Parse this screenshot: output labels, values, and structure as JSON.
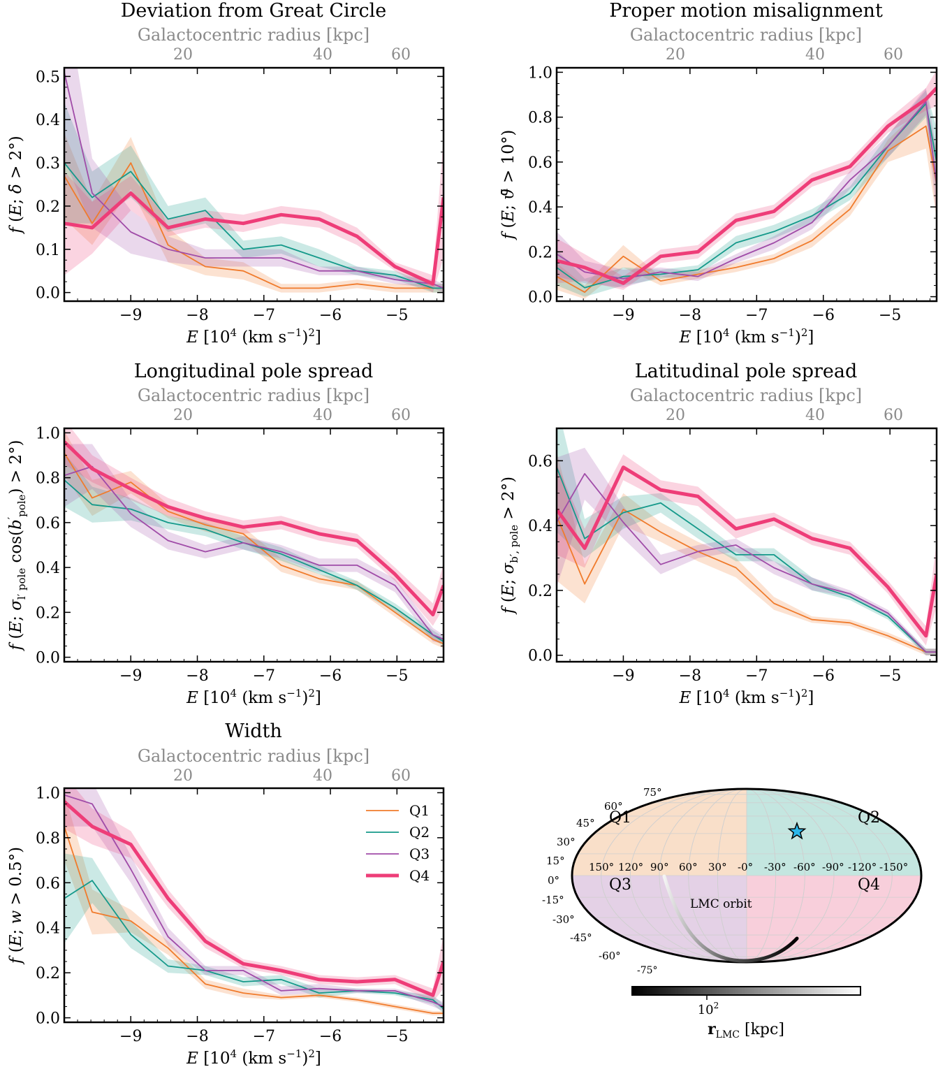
{
  "colors": {
    "Q1": "#f07b2c",
    "Q2": "#14998a",
    "Q3": "#a04ca8",
    "Q4": "#ee3d78"
  },
  "legend": [
    "Q1",
    "Q2",
    "Q3",
    "Q4"
  ],
  "chart_data": [
    {
      "type": "line",
      "title": "Deviation from Great Circle",
      "toplabel": "Galactocentric radius [kpc]",
      "top_ticks": [
        "20",
        "40",
        "60"
      ],
      "xlabel": "E [10^4 (km s^-1)^2]",
      "ylabel": "f (E; δ̄ > 2°)",
      "xlim": [
        -10.0,
        -4.3
      ],
      "ylim": [
        -0.02,
        0.52
      ],
      "xticks": [
        -9,
        -8,
        -7,
        -6,
        -5
      ],
      "yticks": [
        0.0,
        0.1,
        0.2,
        0.3,
        0.4,
        0.5
      ],
      "ytick_labels": [
        "0.0",
        "0.1",
        "0.2",
        "0.3",
        "0.4",
        "0.5"
      ],
      "x": [
        -10.0,
        -9.58,
        -9.0,
        -8.44,
        -7.88,
        -7.31,
        -6.74,
        -6.17,
        -5.6,
        -5.03,
        -4.46,
        -4.3
      ],
      "series": [
        {
          "name": "Q1",
          "values": [
            0.27,
            0.16,
            0.3,
            0.11,
            0.06,
            0.05,
            0.01,
            0.01,
            0.02,
            0.01,
            0.01,
            0.01
          ],
          "band": [
            0.1,
            0.05,
            0.06,
            0.04,
            0.02,
            0.02,
            0.01,
            0.01,
            0.01,
            0.01,
            0.01,
            0.01
          ]
        },
        {
          "name": "Q2",
          "values": [
            0.3,
            0.22,
            0.28,
            0.17,
            0.19,
            0.1,
            0.11,
            0.08,
            0.05,
            0.04,
            0.01,
            0.01
          ],
          "band": [
            0.14,
            0.06,
            0.06,
            0.03,
            0.03,
            0.02,
            0.02,
            0.02,
            0.01,
            0.01,
            0.01,
            0.01
          ]
        },
        {
          "name": "Q3",
          "values": [
            0.51,
            0.23,
            0.14,
            0.1,
            0.08,
            0.08,
            0.08,
            0.05,
            0.05,
            0.03,
            0.02,
            0.01
          ],
          "band": [
            0.2,
            0.08,
            0.05,
            0.03,
            0.02,
            0.02,
            0.02,
            0.01,
            0.01,
            0.01,
            0.01,
            0.01
          ]
        },
        {
          "name": "Q4",
          "values": [
            0.16,
            0.15,
            0.23,
            0.15,
            0.17,
            0.16,
            0.18,
            0.17,
            0.13,
            0.06,
            0.02,
            0.22
          ],
          "band": [
            0.12,
            0.06,
            0.04,
            0.02,
            0.02,
            0.02,
            0.02,
            0.02,
            0.02,
            0.01,
            0.02,
            0.14
          ]
        }
      ]
    },
    {
      "type": "line",
      "title": "Proper motion misalignment",
      "toplabel": "Galactocentric radius [kpc]",
      "top_ticks": [
        "20",
        "40",
        "60"
      ],
      "xlabel": "E [10^4 (km s^-1)^2]",
      "ylabel": "f (E; ϑ̄ > 10°)",
      "xlim": [
        -10.0,
        -4.3
      ],
      "ylim": [
        -0.02,
        1.02
      ],
      "xticks": [
        -9,
        -8,
        -7,
        -6,
        -5
      ],
      "yticks": [
        0.0,
        0.2,
        0.4,
        0.6,
        0.8,
        1.0
      ],
      "ytick_labels": [
        "0.0",
        "0.2",
        "0.4",
        "0.6",
        "0.8",
        "1.0"
      ],
      "x": [
        -10.0,
        -9.58,
        -9.0,
        -8.44,
        -7.88,
        -7.31,
        -6.74,
        -6.17,
        -5.6,
        -5.03,
        -4.46,
        -4.3
      ],
      "series": [
        {
          "name": "Q1",
          "values": [
            0.09,
            0.02,
            0.18,
            0.07,
            0.1,
            0.13,
            0.17,
            0.25,
            0.39,
            0.65,
            0.76,
            0.5
          ],
          "band": [
            0.06,
            0.03,
            0.05,
            0.02,
            0.02,
            0.02,
            0.02,
            0.03,
            0.03,
            0.05,
            0.1,
            0.15
          ]
        },
        {
          "name": "Q2",
          "values": [
            0.13,
            0.04,
            0.09,
            0.1,
            0.12,
            0.24,
            0.29,
            0.36,
            0.46,
            0.67,
            0.86,
            0.6
          ],
          "band": [
            0.08,
            0.04,
            0.04,
            0.02,
            0.02,
            0.03,
            0.03,
            0.03,
            0.03,
            0.05,
            0.06,
            0.15
          ]
        },
        {
          "name": "Q3",
          "values": [
            0.19,
            0.11,
            0.08,
            0.11,
            0.09,
            0.17,
            0.24,
            0.33,
            0.52,
            0.67,
            0.87,
            0.5
          ],
          "band": [
            0.1,
            0.05,
            0.04,
            0.02,
            0.02,
            0.02,
            0.03,
            0.03,
            0.04,
            0.05,
            0.06,
            0.15
          ]
        },
        {
          "name": "Q4",
          "values": [
            0.16,
            0.13,
            0.06,
            0.18,
            0.2,
            0.34,
            0.38,
            0.52,
            0.58,
            0.76,
            0.88,
            0.93
          ],
          "band": [
            0.1,
            0.06,
            0.03,
            0.03,
            0.03,
            0.03,
            0.03,
            0.03,
            0.03,
            0.03,
            0.05,
            0.08
          ]
        }
      ]
    },
    {
      "type": "line",
      "title": "Longitudinal pole spread",
      "toplabel": "Galactocentric radius [kpc]",
      "top_ticks": [
        "20",
        "40",
        "60"
      ],
      "xlabel": "E [10^4 (km s^-1)^2]",
      "ylabel": "f (E; σl′pole cos(b′pole) > 2°)",
      "xlim": [
        -10.0,
        -4.3
      ],
      "ylim": [
        -0.02,
        1.02
      ],
      "xticks": [
        -9,
        -8,
        -7,
        -6,
        -5
      ],
      "yticks": [
        0.0,
        0.2,
        0.4,
        0.6,
        0.8,
        1.0
      ],
      "ytick_labels": [
        "0.0",
        "0.2",
        "0.4",
        "0.6",
        "0.8",
        "1.0"
      ],
      "x": [
        -10.0,
        -9.58,
        -9.0,
        -8.44,
        -7.88,
        -7.31,
        -6.74,
        -6.17,
        -5.6,
        -5.03,
        -4.46,
        -4.3
      ],
      "series": [
        {
          "name": "Q1",
          "values": [
            0.91,
            0.71,
            0.78,
            0.65,
            0.59,
            0.55,
            0.41,
            0.35,
            0.32,
            0.2,
            0.08,
            0.06
          ],
          "band": [
            0.1,
            0.08,
            0.05,
            0.03,
            0.03,
            0.03,
            0.03,
            0.02,
            0.02,
            0.02,
            0.02,
            0.02
          ]
        },
        {
          "name": "Q2",
          "values": [
            0.79,
            0.68,
            0.66,
            0.6,
            0.57,
            0.51,
            0.46,
            0.39,
            0.32,
            0.22,
            0.1,
            0.07
          ],
          "band": [
            0.12,
            0.08,
            0.05,
            0.03,
            0.03,
            0.03,
            0.03,
            0.02,
            0.02,
            0.02,
            0.02,
            0.02
          ]
        },
        {
          "name": "Q3",
          "values": [
            0.81,
            0.85,
            0.64,
            0.52,
            0.47,
            0.51,
            0.47,
            0.41,
            0.41,
            0.32,
            0.1,
            0.08
          ],
          "band": [
            0.14,
            0.1,
            0.06,
            0.04,
            0.03,
            0.03,
            0.03,
            0.03,
            0.03,
            0.03,
            0.03,
            0.02
          ]
        },
        {
          "name": "Q4",
          "values": [
            0.96,
            0.84,
            0.75,
            0.67,
            0.62,
            0.58,
            0.6,
            0.55,
            0.52,
            0.37,
            0.19,
            0.32
          ],
          "band": [
            0.1,
            0.06,
            0.05,
            0.04,
            0.03,
            0.03,
            0.03,
            0.03,
            0.03,
            0.03,
            0.05,
            0.1
          ]
        }
      ]
    },
    {
      "type": "line",
      "title": "Latitudinal pole spread",
      "toplabel": "Galactocentric radius [kpc]",
      "top_ticks": [
        "20",
        "40",
        "60"
      ],
      "xlabel": "E [10^4 (km s^-1)^2]",
      "ylabel": "f (E; σb′,pole > 2°)",
      "xlim": [
        -10.0,
        -4.3
      ],
      "ylim": [
        -0.02,
        0.7
      ],
      "xticks": [
        -9,
        -8,
        -7,
        -6,
        -5
      ],
      "yticks": [
        0.0,
        0.2,
        0.4,
        0.6
      ],
      "ytick_labels": [
        "0.0",
        "0.2",
        "0.4",
        "0.6"
      ],
      "x": [
        -10.0,
        -9.58,
        -9.0,
        -8.44,
        -7.88,
        -7.31,
        -6.74,
        -6.17,
        -5.6,
        -5.03,
        -4.46,
        -4.3
      ],
      "series": [
        {
          "name": "Q1",
          "values": [
            0.43,
            0.22,
            0.45,
            0.38,
            0.32,
            0.27,
            0.16,
            0.11,
            0.1,
            0.06,
            0.01,
            0.01
          ],
          "band": [
            0.2,
            0.06,
            0.05,
            0.03,
            0.03,
            0.03,
            0.02,
            0.01,
            0.01,
            0.01,
            0.01,
            0.01
          ]
        },
        {
          "name": "Q2",
          "values": [
            0.58,
            0.36,
            0.44,
            0.47,
            0.39,
            0.31,
            0.31,
            0.22,
            0.18,
            0.12,
            0.01,
            0.01
          ],
          "band": [
            0.2,
            0.06,
            0.05,
            0.03,
            0.03,
            0.02,
            0.02,
            0.02,
            0.01,
            0.01,
            0.01,
            0.01
          ]
        },
        {
          "name": "Q3",
          "values": [
            0.41,
            0.56,
            0.41,
            0.28,
            0.32,
            0.34,
            0.27,
            0.22,
            0.19,
            0.13,
            0.01,
            0.01
          ],
          "band": [
            0.2,
            0.08,
            0.05,
            0.03,
            0.02,
            0.02,
            0.02,
            0.02,
            0.01,
            0.01,
            0.01,
            0.01
          ]
        },
        {
          "name": "Q4",
          "values": [
            0.45,
            0.33,
            0.58,
            0.51,
            0.49,
            0.39,
            0.42,
            0.36,
            0.33,
            0.21,
            0.06,
            0.25
          ],
          "band": [
            0.14,
            0.06,
            0.04,
            0.03,
            0.03,
            0.03,
            0.02,
            0.02,
            0.02,
            0.02,
            0.03,
            0.1
          ]
        }
      ]
    },
    {
      "type": "line",
      "title": "Width",
      "toplabel": "Galactocentric radius [kpc]",
      "top_ticks": [
        "20",
        "40",
        "60"
      ],
      "xlabel": "E [10^4 (km s^-1)^2]",
      "ylabel": "f (E; w > 0.5°)",
      "xlim": [
        -10.0,
        -4.3
      ],
      "ylim": [
        -0.02,
        1.02
      ],
      "xticks": [
        -9,
        -8,
        -7,
        -6,
        -5
      ],
      "yticks": [
        0.0,
        0.2,
        0.4,
        0.6,
        0.8,
        1.0
      ],
      "ytick_labels": [
        "0.0",
        "0.2",
        "0.4",
        "0.6",
        "0.8",
        "1.0"
      ],
      "legend_position": "top-right",
      "x": [
        -10.0,
        -9.58,
        -9.0,
        -8.44,
        -7.88,
        -7.31,
        -6.74,
        -6.17,
        -5.6,
        -5.03,
        -4.46,
        -4.3
      ],
      "series": [
        {
          "name": "Q1",
          "values": [
            0.85,
            0.47,
            0.43,
            0.31,
            0.15,
            0.11,
            0.09,
            0.1,
            0.08,
            0.05,
            0.02,
            0.02
          ],
          "band": [
            0.15,
            0.1,
            0.05,
            0.03,
            0.02,
            0.02,
            0.01,
            0.01,
            0.01,
            0.01,
            0.01,
            0.01
          ]
        },
        {
          "name": "Q2",
          "values": [
            0.53,
            0.61,
            0.37,
            0.23,
            0.21,
            0.16,
            0.17,
            0.11,
            0.12,
            0.11,
            0.08,
            0.04
          ],
          "band": [
            0.2,
            0.1,
            0.06,
            0.03,
            0.02,
            0.02,
            0.02,
            0.02,
            0.01,
            0.01,
            0.02,
            0.02
          ]
        },
        {
          "name": "Q3",
          "values": [
            0.99,
            0.95,
            0.66,
            0.36,
            0.21,
            0.21,
            0.12,
            0.13,
            0.12,
            0.12,
            0.07,
            0.05
          ],
          "band": [
            0.14,
            0.1,
            0.06,
            0.04,
            0.02,
            0.02,
            0.02,
            0.02,
            0.01,
            0.01,
            0.02,
            0.02
          ]
        },
        {
          "name": "Q4",
          "values": [
            0.96,
            0.85,
            0.77,
            0.53,
            0.34,
            0.24,
            0.21,
            0.17,
            0.16,
            0.17,
            0.1,
            0.25
          ],
          "band": [
            0.12,
            0.08,
            0.06,
            0.04,
            0.03,
            0.02,
            0.02,
            0.02,
            0.02,
            0.02,
            0.03,
            0.12
          ]
        }
      ]
    }
  ],
  "map": {
    "quadrants": [
      "Q1",
      "Q2",
      "Q3",
      "Q4"
    ],
    "lon_labels": [
      "150°",
      "120°",
      "90°",
      "60°",
      "30°",
      "-0°",
      "-30°",
      "-60°",
      "-90°",
      "-120°",
      "-150°"
    ],
    "lat_labels": [
      "75°",
      "60°",
      "45°",
      "30°",
      "15°",
      "0°",
      "-15°",
      "-30°",
      "-45°",
      "-60°",
      "-75°"
    ],
    "orbit_label": "LMC orbit",
    "quadrant_colors": {
      "Q1": "#f9dfc9",
      "Q2": "#c4e6e0",
      "Q3": "#e4d1e6",
      "Q4": "#f8cfdb"
    },
    "star_color": "#2bb7ea",
    "colorbar": {
      "tick": "10",
      "tick_exp": "2",
      "label_bold": "r",
      "label_sub": "LMC",
      "label_unit": " [kpc]"
    }
  }
}
